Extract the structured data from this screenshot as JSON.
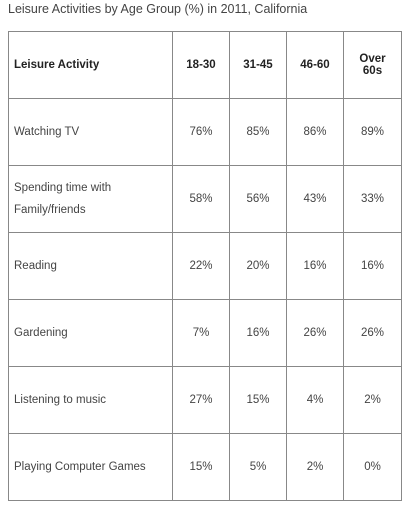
{
  "chart_data": {
    "type": "table",
    "title": "Leisure Activities by Age Group (%) in 2011, California",
    "columns": [
      "Leisure Activity",
      "18-30",
      "31-45",
      "46-60",
      "Over 60s"
    ],
    "rows": [
      {
        "activity": "Watching TV",
        "values": [
          "76%",
          "85%",
          "86%",
          "89%"
        ]
      },
      {
        "activity": "Spending time with Family/friends",
        "values": [
          "58%",
          "56%",
          "43%",
          "33%"
        ]
      },
      {
        "activity": "Reading",
        "values": [
          "22%",
          "20%",
          "16%",
          "16%"
        ]
      },
      {
        "activity": "Gardening",
        "values": [
          "7%",
          "16%",
          "26%",
          "26%"
        ]
      },
      {
        "activity": "Listening to music",
        "values": [
          "27%",
          "15%",
          "4%",
          "2%"
        ]
      },
      {
        "activity": "Playing Computer Games",
        "values": [
          "15%",
          "5%",
          "2%",
          "0%"
        ]
      }
    ]
  }
}
